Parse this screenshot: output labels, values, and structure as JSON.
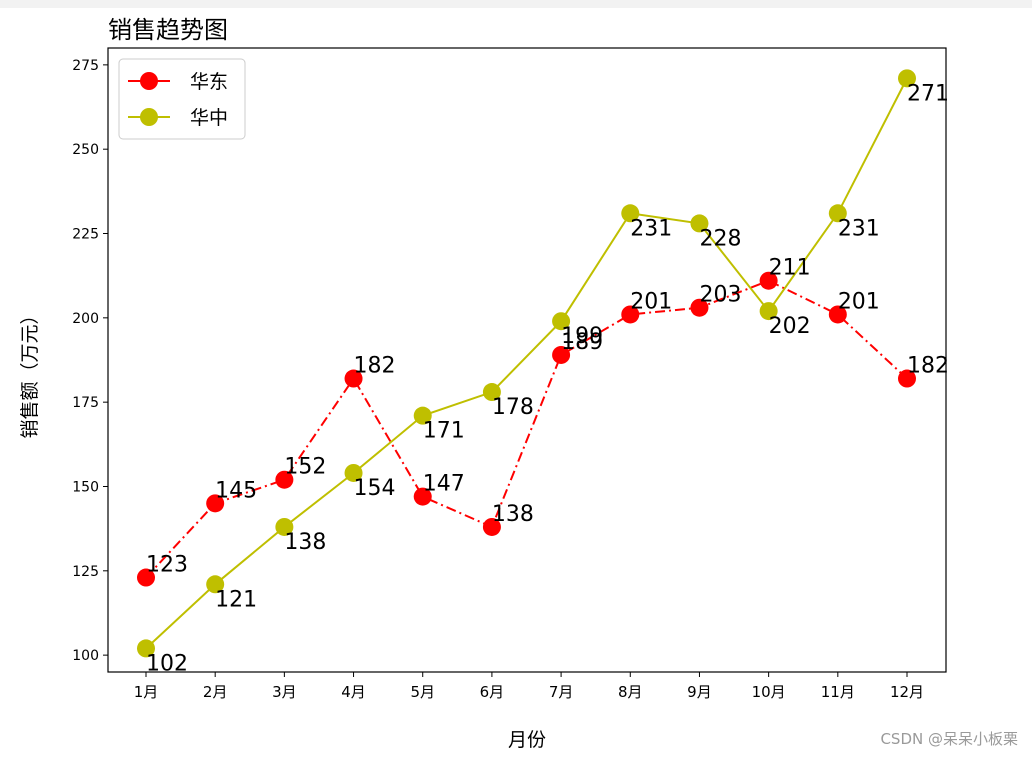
{
  "chart_data": {
    "type": "line",
    "title": "销售趋势图",
    "xlabel": "月份",
    "ylabel": "销售额（万元）",
    "categories": [
      "1月",
      "2月",
      "3月",
      "4月",
      "5月",
      "6月",
      "7月",
      "8月",
      "9月",
      "10月",
      "11月",
      "12月"
    ],
    "ylim": [
      95,
      280
    ],
    "yticks": [
      100,
      125,
      150,
      175,
      200,
      225,
      250,
      275
    ],
    "grid": false,
    "legend_position": "top-left",
    "series": [
      {
        "name": "华东",
        "color": "#ff0000",
        "line_style": "dash-dot",
        "marker": "circle",
        "values": [
          123,
          145,
          152,
          182,
          147,
          138,
          189,
          201,
          203,
          211,
          201,
          182
        ]
      },
      {
        "name": "华中",
        "color": "#bfbf00",
        "line_style": "solid",
        "marker": "circle",
        "values": [
          102,
          121,
          138,
          154,
          171,
          178,
          199,
          231,
          228,
          202,
          231,
          271
        ]
      }
    ]
  },
  "watermark": "CSDN @呆呆小板栗"
}
